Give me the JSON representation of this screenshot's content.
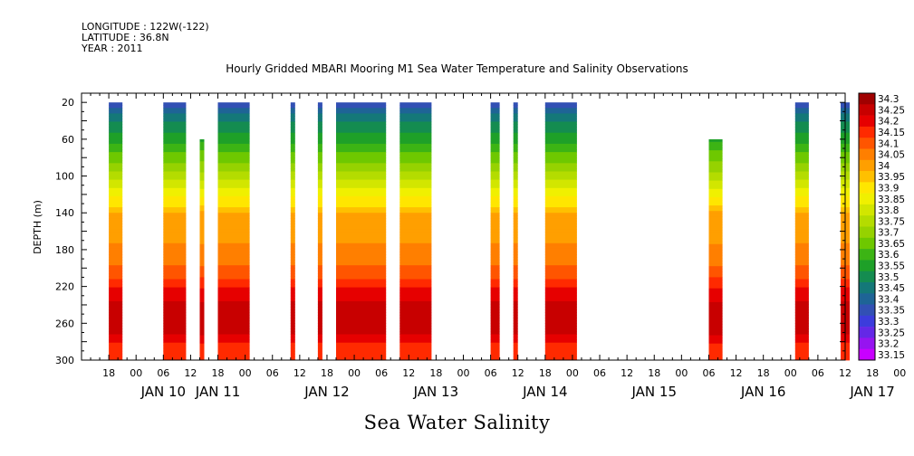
{
  "header": {
    "longitude": "LONGITUDE : 122W(-122)",
    "latitude": "LATITUDE : 36.8N",
    "year": "YEAR : 2011"
  },
  "chart_data": {
    "type": "heatmap",
    "title": "Hourly Gridded MBARI Mooring M1 Sea Water Temperature and Salinity Observations",
    "footer": "Sea Water Salinity",
    "ylabel": "DEPTH (m)",
    "ylim": [
      300,
      10
    ],
    "y_ticks": [
      20,
      60,
      100,
      140,
      180,
      220,
      260,
      300
    ],
    "x_hour_labels": [
      "18",
      "00",
      "06",
      "12",
      "18",
      "00",
      "06",
      "12",
      "18",
      "00",
      "06",
      "12",
      "18",
      "00",
      "06",
      "12",
      "18",
      "00",
      "06",
      "12",
      "18",
      "00",
      "06",
      "12",
      "18",
      "00",
      "06",
      "12",
      "18",
      "00",
      "06",
      "12"
    ],
    "x_start_hour": 18,
    "x_day_labels": [
      "JAN 10",
      "JAN 11",
      "JAN 12",
      "JAN 13",
      "JAN 14",
      "JAN 15",
      "JAN 16",
      "JAN 17"
    ],
    "x_day_label_hours": [
      30,
      42,
      66,
      90,
      114,
      138,
      162,
      186
    ],
    "x_range_hours": [
      12,
      180
    ],
    "colorbar": {
      "levels": [
        "34.3",
        "34.25",
        "34.2",
        "34.15",
        "34.1",
        "34.05",
        "34",
        "33.95",
        "33.9",
        "33.85",
        "33.8",
        "33.75",
        "33.7",
        "33.65",
        "33.6",
        "33.55",
        "33.5",
        "33.45",
        "33.4",
        "33.35",
        "33.3",
        "33.25",
        "33.2",
        "33.15"
      ],
      "colors": [
        "#a00000",
        "#c80000",
        "#e60000",
        "#ff2a00",
        "#ff5500",
        "#ff7f00",
        "#ff9f00",
        "#ffc000",
        "#ffe600",
        "#f0f000",
        "#d2e600",
        "#b4dc00",
        "#96d200",
        "#6ec800",
        "#3cb414",
        "#1ea028",
        "#148c50",
        "#147878",
        "#1e6496",
        "#3250b4",
        "#3c3cdc",
        "#6428e6",
        "#9614f0",
        "#c800ff"
      ]
    },
    "data_segments": [
      {
        "start": 18.0,
        "end": 21.0,
        "top": 20
      },
      {
        "start": 30.0,
        "end": 35.0,
        "top": 20
      },
      {
        "start": 38.0,
        "end": 39.0,
        "top": 60
      },
      {
        "start": 42.0,
        "end": 49.0,
        "top": 20
      },
      {
        "start": 58.0,
        "end": 59.0,
        "top": 20
      },
      {
        "start": 64.0,
        "end": 65.0,
        "top": 20
      },
      {
        "start": 68.0,
        "end": 79.0,
        "top": 20
      },
      {
        "start": 82.0,
        "end": 89.0,
        "top": 20
      },
      {
        "start": 102.0,
        "end": 104.0,
        "top": 20
      },
      {
        "start": 107.0,
        "end": 108.0,
        "top": 20
      },
      {
        "start": 114.0,
        "end": 121.0,
        "top": 20
      },
      {
        "start": 150.0,
        "end": 153.0,
        "top": 60
      },
      {
        "start": 169.0,
        "end": 172.0,
        "top": 20
      },
      {
        "start": 179.0,
        "end": 181.0,
        "top": 20
      }
    ],
    "depth_profile": [
      {
        "depth": 20,
        "value": 33.37
      },
      {
        "depth": 30,
        "value": 33.43
      },
      {
        "depth": 45,
        "value": 33.52
      },
      {
        "depth": 60,
        "value": 33.58
      },
      {
        "depth": 75,
        "value": 33.66
      },
      {
        "depth": 90,
        "value": 33.72
      },
      {
        "depth": 105,
        "value": 33.8
      },
      {
        "depth": 118,
        "value": 33.88
      },
      {
        "depth": 130,
        "value": 33.93
      },
      {
        "depth": 142,
        "value": 34.02
      },
      {
        "depth": 185,
        "value": 34.06
      },
      {
        "depth": 205,
        "value": 34.12
      },
      {
        "depth": 215,
        "value": 34.17
      },
      {
        "depth": 225,
        "value": 34.21
      },
      {
        "depth": 245,
        "value": 34.28
      },
      {
        "depth": 268,
        "value": 34.27
      },
      {
        "depth": 285,
        "value": 34.18
      },
      {
        "depth": 300,
        "value": 34.16
      }
    ]
  }
}
